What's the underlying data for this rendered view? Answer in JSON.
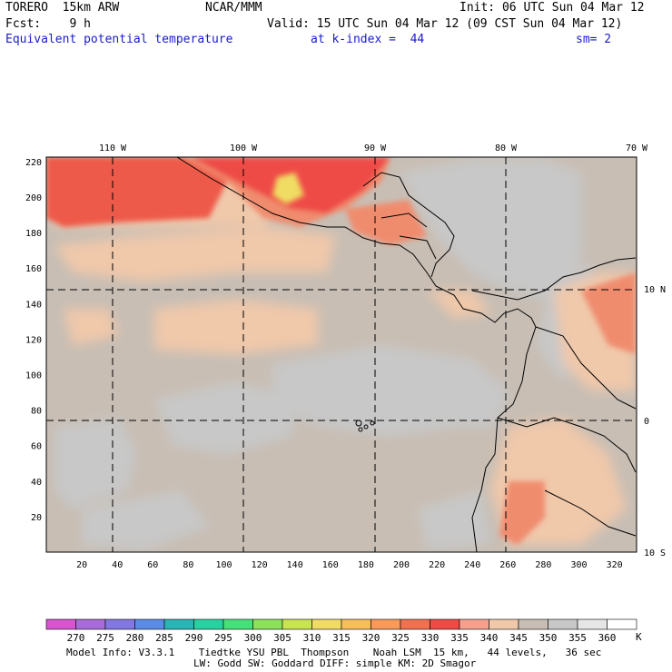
{
  "header": {
    "model": "TORERO  15km ARW",
    "center": "NCAR/MMM",
    "init": "Init: 06 UTC Sun 04 Mar 12",
    "fcst": "Fcst:    9 h",
    "valid": "Valid: 15 UTC Sun 04 Mar 12 (09 CST Sun 04 Mar 12)",
    "field": "Equivalent potential temperature",
    "level": "at k-index =  44",
    "smoothing": "sm= 2"
  },
  "map": {
    "lon_labels": [
      "110 W",
      "100 W",
      "90 W",
      "80 W",
      "70 W"
    ],
    "lat_labels": [
      "10 N",
      "0",
      "10 S"
    ],
    "y_ticks": [
      "20",
      "40",
      "60",
      "80",
      "100",
      "120",
      "140",
      "160",
      "180",
      "200",
      "220"
    ],
    "x_ticks": [
      "20",
      "40",
      "60",
      "80",
      "100",
      "120",
      "140",
      "160",
      "180",
      "200",
      "220",
      "240",
      "260",
      "280",
      "300",
      "320"
    ],
    "colors": {
      "land_boundary": "#000000",
      "grid_lines": "#000000",
      "base_field": "#c8beb4",
      "cool_field": "#c8c8c8",
      "warm_field": "#f0c8aa",
      "hot_field": "#f08c6e",
      "very_hot_field": "#ee5a4a"
    }
  },
  "colorbar": {
    "unit": "K",
    "labels": [
      "270",
      "275",
      "280",
      "285",
      "290",
      "295",
      "300",
      "305",
      "310",
      "315",
      "320",
      "325",
      "330",
      "335",
      "340",
      "345",
      "350",
      "355",
      "360"
    ],
    "colors": [
      "#d855d0",
      "#a86cd8",
      "#8278e0",
      "#5a8ce6",
      "#2ab4b4",
      "#28d2a0",
      "#46e07a",
      "#8ce15a",
      "#c8e450",
      "#f0dc64",
      "#f7be5a",
      "#f79a5a",
      "#f07050",
      "#ee4b46",
      "#f5a08c",
      "#f0c8aa",
      "#c8beb4",
      "#c8c8c8",
      "#e6e6e6",
      "#ffffff"
    ]
  },
  "footer": {
    "line1": "Model Info: V3.3.1    Tiedtke YSU PBL  Thompson    Noah LSM  15 km,   44 levels,   36 sec",
    "line2": "LW: Godd SW: Goddard DIFF: simple KM: 2D Smagor"
  }
}
